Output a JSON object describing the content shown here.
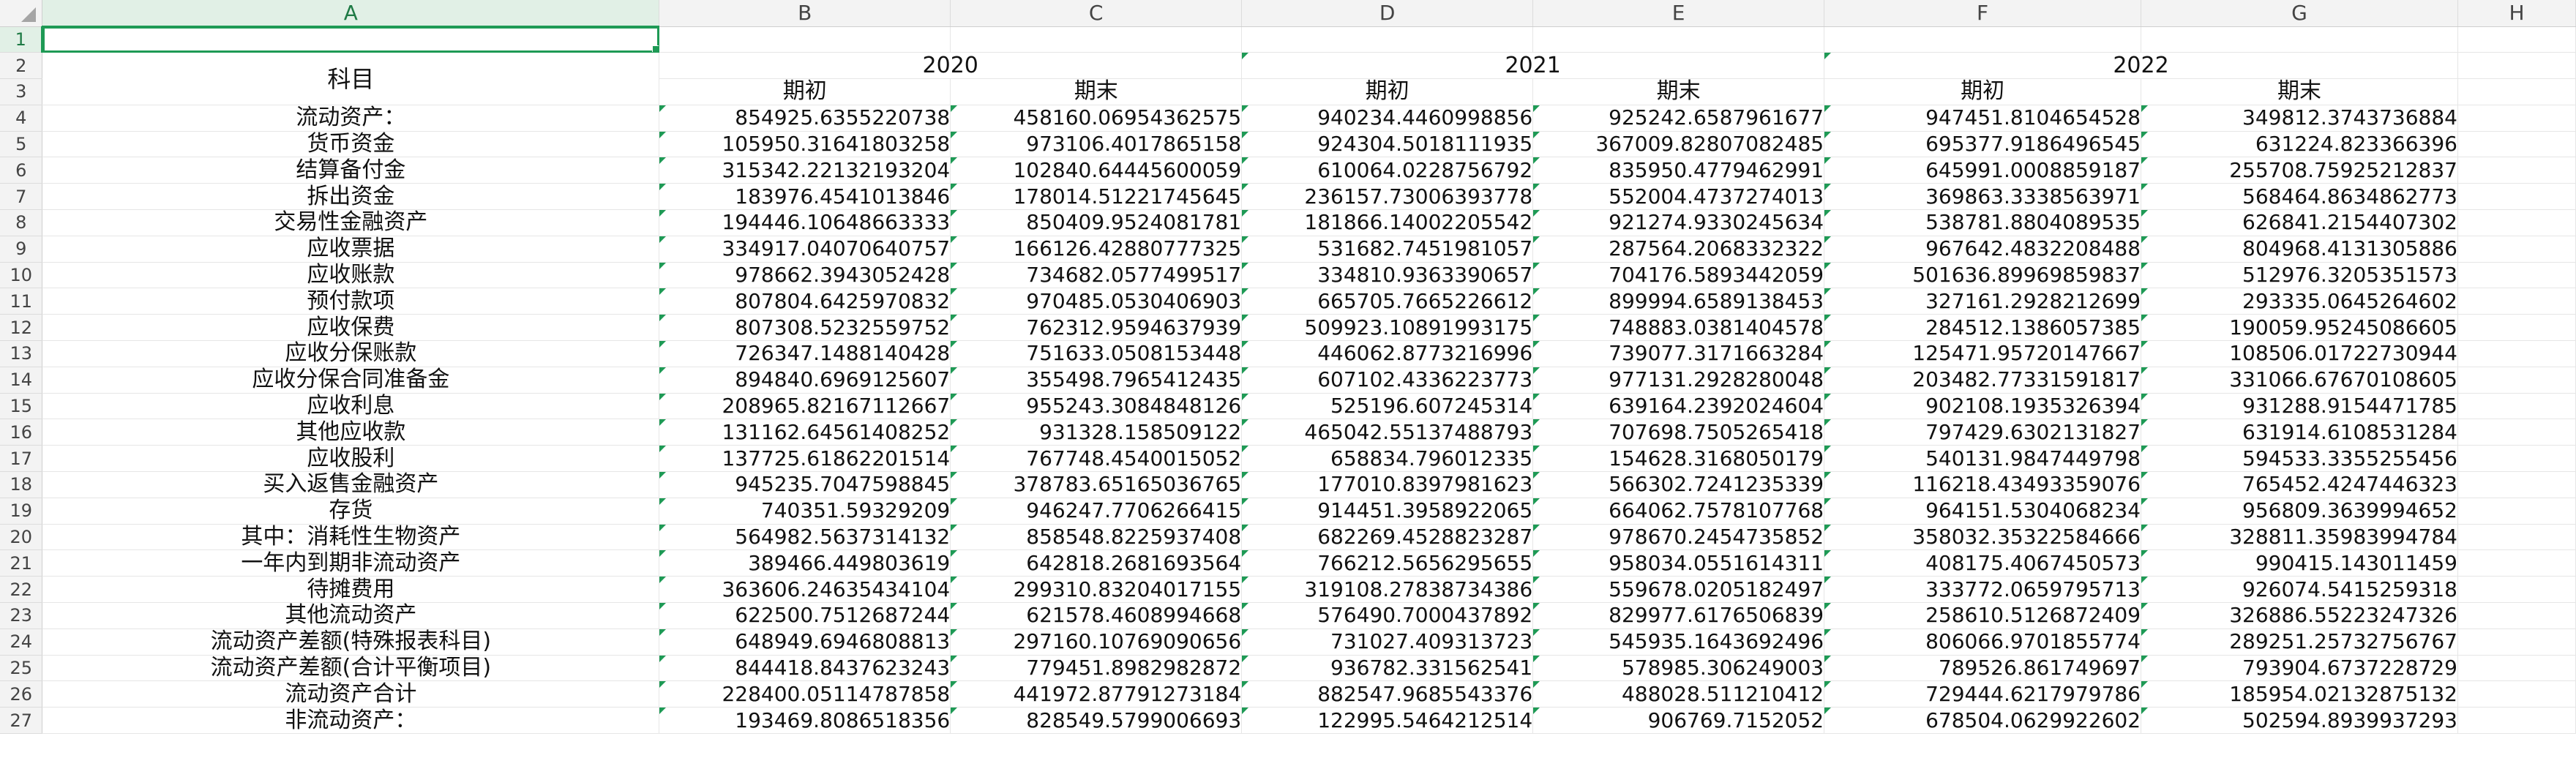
{
  "columns": [
    "A",
    "B",
    "C",
    "D",
    "E",
    "F",
    "G",
    "H"
  ],
  "selected_column": "A",
  "selected_row": "1",
  "header": {
    "subject_label": "科目",
    "years": [
      "2020",
      "2021",
      "2022"
    ],
    "period_start": "期初",
    "period_end": "期末"
  },
  "rows": [
    {
      "n": "4",
      "label": "流动资产：",
      "values": [
        "854925.6355220738",
        "458160.06954362575",
        "940234.4460998856",
        "925242.6587961677",
        "947451.8104654528",
        "349812.3743736884"
      ]
    },
    {
      "n": "5",
      "label": "货币资金",
      "values": [
        "105950.31641803258",
        "973106.4017865158",
        "924304.5018111935",
        "367009.82807082485",
        "695377.9186496545",
        "631224.823366396"
      ]
    },
    {
      "n": "6",
      "label": "结算备付金",
      "values": [
        "315342.22132193204",
        "102840.64445600059",
        "610064.0228756792",
        "835950.4779462991",
        "645991.0008859187",
        "255708.75925212837"
      ]
    },
    {
      "n": "7",
      "label": "拆出资金",
      "values": [
        "183976.4541013846",
        "178014.51221745645",
        "236157.73006393778",
        "552004.4737274013",
        "369863.3338563971",
        "568464.8634862773"
      ]
    },
    {
      "n": "8",
      "label": "交易性金融资产",
      "values": [
        "194446.10648663333",
        "850409.9524081781",
        "181866.14002205542",
        "921274.9330245634",
        "538781.8804089535",
        "626841.2154407302"
      ]
    },
    {
      "n": "9",
      "label": "应收票据",
      "values": [
        "334917.04070640757",
        "166126.42880777325",
        "531682.7451981057",
        "287564.2068332322",
        "967642.4832208488",
        "804968.4131305886"
      ]
    },
    {
      "n": "10",
      "label": "应收账款",
      "values": [
        "978662.3943052428",
        "734682.0577499517",
        "334810.9363390657",
        "704176.5893442059",
        "501636.89969859837",
        "512976.3205351573"
      ]
    },
    {
      "n": "11",
      "label": "预付款项",
      "values": [
        "807804.6425970832",
        "970485.0530406903",
        "665705.7665226612",
        "899994.6589138453",
        "327161.2928212699",
        "293335.0645264602"
      ]
    },
    {
      "n": "12",
      "label": "应收保费",
      "values": [
        "807308.5232559752",
        "762312.9594637939",
        "509923.10891993175",
        "748883.0381404578",
        "284512.1386057385",
        "190059.95245086605"
      ]
    },
    {
      "n": "13",
      "label": "应收分保账款",
      "values": [
        "726347.1488140428",
        "751633.0508153448",
        "446062.8773216996",
        "739077.3171663284",
        "125471.95720147667",
        "108506.01722730944"
      ]
    },
    {
      "n": "14",
      "label": "应收分保合同准备金",
      "values": [
        "894840.6969125607",
        "355498.7965412435",
        "607102.4336223773",
        "977131.2928280048",
        "203482.77331591817",
        "331066.67670108605"
      ]
    },
    {
      "n": "15",
      "label": "应收利息",
      "values": [
        "208965.82167112667",
        "955243.3084848126",
        "525196.607245314",
        "639164.2392024604",
        "902108.1935326394",
        "931288.9154471785"
      ]
    },
    {
      "n": "16",
      "label": "其他应收款",
      "values": [
        "131162.64561408252",
        "931328.158509122",
        "465042.55137488793",
        "707698.7505265418",
        "797429.6302131827",
        "631914.6108531284"
      ]
    },
    {
      "n": "17",
      "label": "应收股利",
      "values": [
        "137725.61862201514",
        "767748.4540015052",
        "658834.796012335",
        "154628.3168050179",
        "540131.9847449798",
        "594533.3355255456"
      ]
    },
    {
      "n": "18",
      "label": "买入返售金融资产",
      "values": [
        "945235.7047598845",
        "378783.65165036765",
        "177010.8397981623",
        "566302.7241235339",
        "116218.43493359076",
        "765452.4247446323"
      ]
    },
    {
      "n": "19",
      "label": "存货",
      "values": [
        "740351.59329209",
        "946247.7706266415",
        "914451.3958922065",
        "664062.7578107768",
        "964151.5304068234",
        "956809.3639994652"
      ]
    },
    {
      "n": "20",
      "label": "其中：消耗性生物资产",
      "values": [
        "564982.5637314132",
        "858548.8225937408",
        "682269.4528823287",
        "978670.2454735852",
        "358032.35322584666",
        "328811.35983994784"
      ]
    },
    {
      "n": "21",
      "label": "一年内到期非流动资产",
      "values": [
        "389466.449803619",
        "642818.2681693564",
        "766212.5656295655",
        "958034.0551614311",
        "408175.4067450573",
        "990415.143011459"
      ]
    },
    {
      "n": "22",
      "label": "待摊费用",
      "values": [
        "363606.24635434104",
        "299310.83204017155",
        "319108.27838734386",
        "559678.0205182497",
        "333772.0659795713",
        "926074.5415259318"
      ]
    },
    {
      "n": "23",
      "label": "其他流动资产",
      "values": [
        "622500.7512687244",
        "621578.4608994668",
        "576490.7000437892",
        "829977.6176506839",
        "258610.5126872409",
        "326886.55223247326"
      ]
    },
    {
      "n": "24",
      "label": "流动资产差额(特殊报表科目)",
      "values": [
        "648949.6946808813",
        "297160.10769090656",
        "731027.409313723",
        "545935.1643692496",
        "806066.9701855774",
        "289251.25732756767"
      ]
    },
    {
      "n": "25",
      "label": "流动资产差额(合计平衡项目)",
      "values": [
        "844418.8437623243",
        "779451.8982982872",
        "936782.331562541",
        "578985.306249003",
        "789526.861749697",
        "793904.6737228729"
      ]
    },
    {
      "n": "26",
      "label": "流动资产合计",
      "values": [
        "228400.05114787858",
        "441972.87791273184",
        "882547.9685543376",
        "488028.511210412",
        "729444.6217979786",
        "185954.02132875132"
      ]
    },
    {
      "n": "27",
      "label": "非流动资产：",
      "values": [
        "193469.8086518356",
        "828549.5799006693",
        "122995.5464212514",
        "906769.7152052",
        "678504.0629922602",
        "502594.8939937293"
      ]
    }
  ]
}
